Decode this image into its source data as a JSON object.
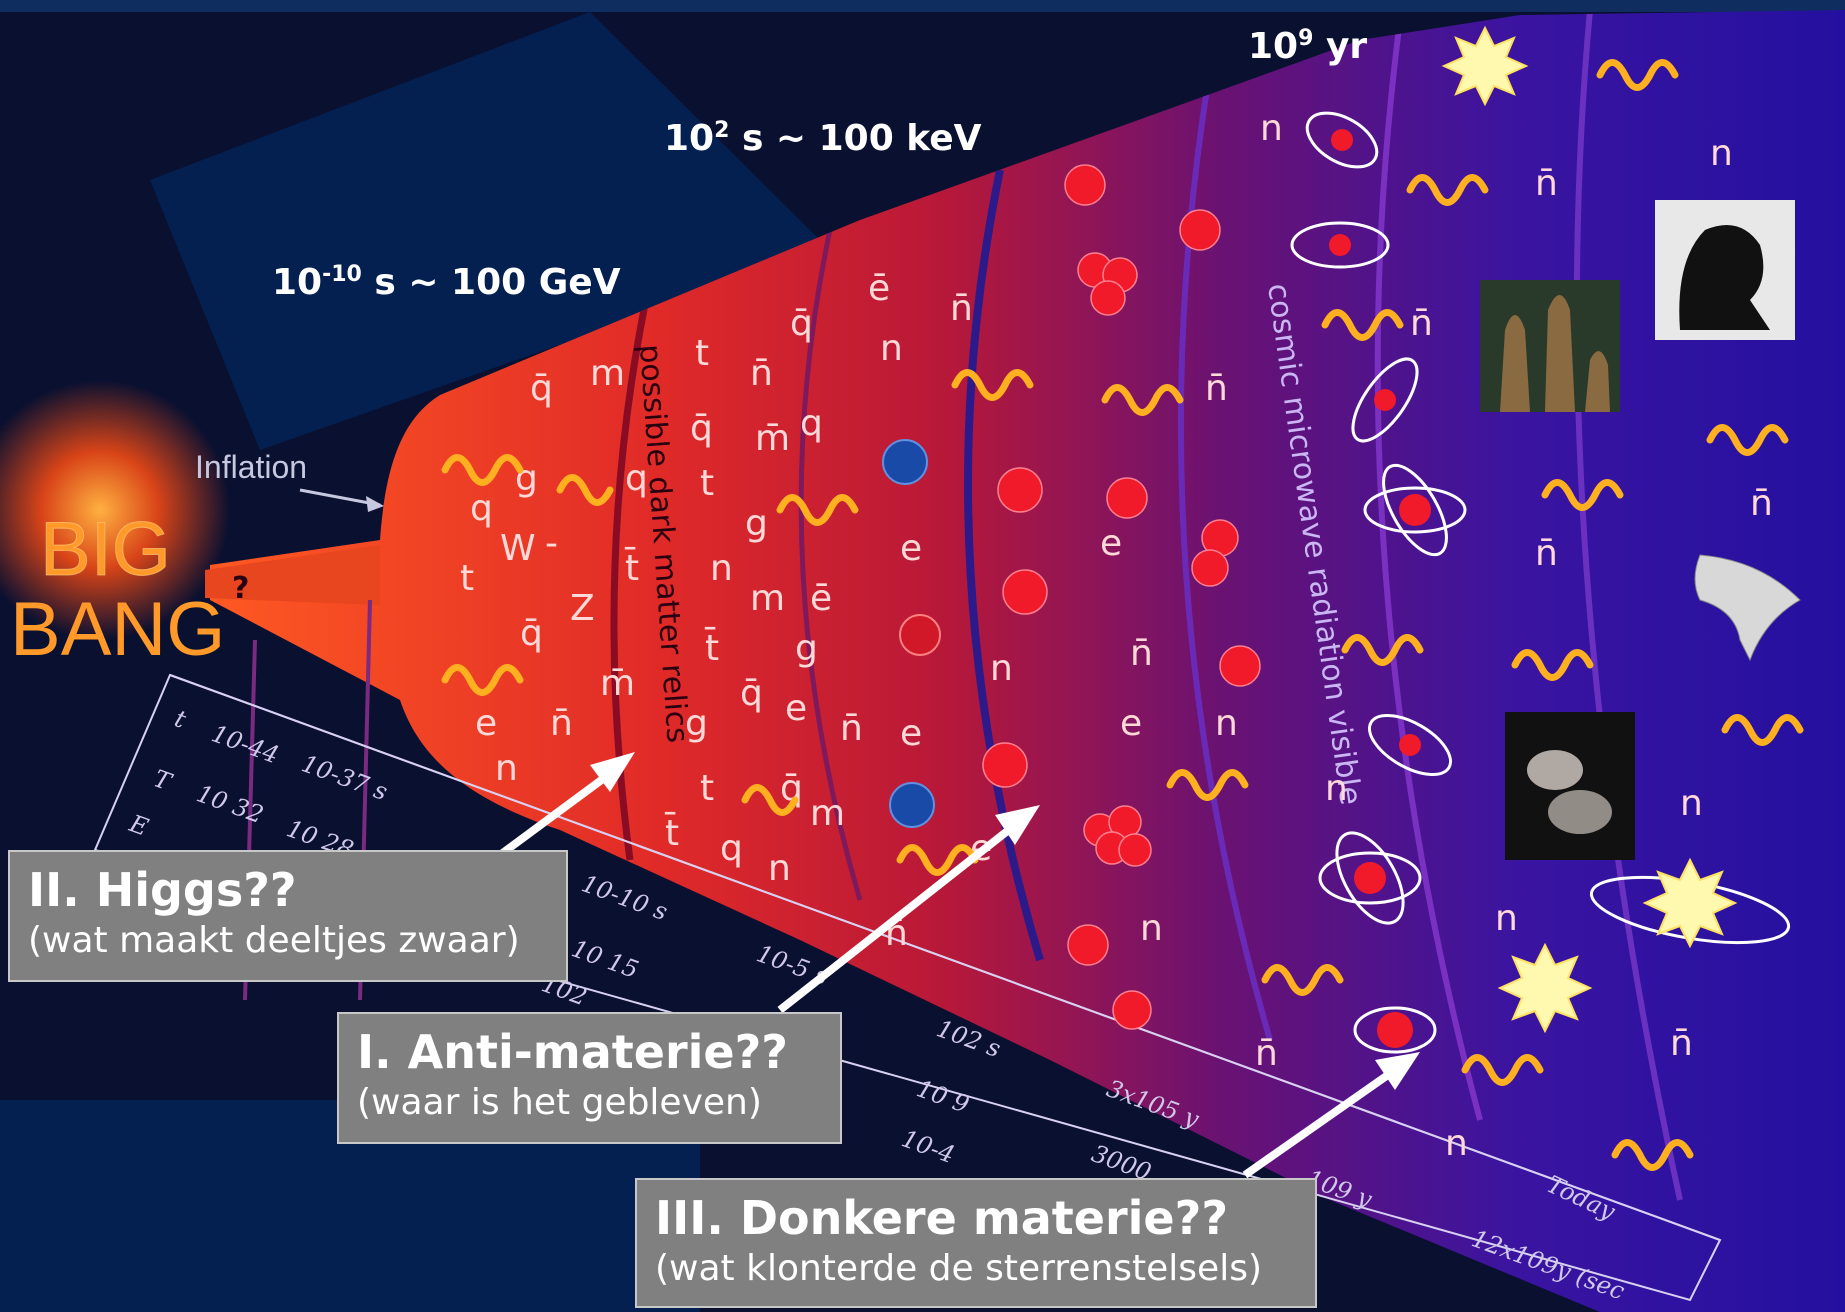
{
  "header_labels": {
    "t1": {
      "base": "10",
      "exp": "-10",
      "rest": " s ~ 100 GeV"
    },
    "t2": {
      "base": "10",
      "exp": "2",
      "rest": " s ~ 100 keV"
    },
    "t3": {
      "base": "10",
      "exp": "9",
      "rest": " yr"
    }
  },
  "figure": {
    "big_bang_line1": "BIG",
    "big_bang_line2": "BANG",
    "inflation": "Inflation",
    "question_mark": "?",
    "dark_matter_relics": "possible dark matter relics",
    "cmb": "cosmic microwave radiation visible",
    "scale_t": "t",
    "scale_T": "T",
    "scale_E": "E",
    "scale_t1": "10-44",
    "scale_t2": "10-37 s",
    "scale_T1": "10 32",
    "scale_T2": "10 28",
    "scale_t3": "10-10 s",
    "scale_T3": "10 15",
    "scale_E3": "102",
    "scale_t4": "10-5 s",
    "scale_t5": "102 s",
    "scale_T5": "10 9",
    "scale_E5": "10-4",
    "scale_t6": "3x105 y",
    "scale_T6": "3000",
    "scale_t7": "109 y",
    "scale_today": "Today",
    "scale_now": "12x109y (sec"
  },
  "callouts": {
    "higgs": {
      "title": "II. Higgs??",
      "sub": "(wat maakt deeltjes zwaar)"
    },
    "anti": {
      "title": "I. Anti-materie??",
      "sub": "(waar is het gebleven)"
    },
    "dark": {
      "title": "III. Donkere materie??",
      "sub": "(wat klonterde de sterrenstelsels)"
    }
  },
  "colors": {
    "background": "#0a1030",
    "panel": "#032050",
    "fire": "#e23018",
    "deep_purple": "#2a0e8c",
    "callout_box": "#808080",
    "arrow": "#ffffff"
  }
}
